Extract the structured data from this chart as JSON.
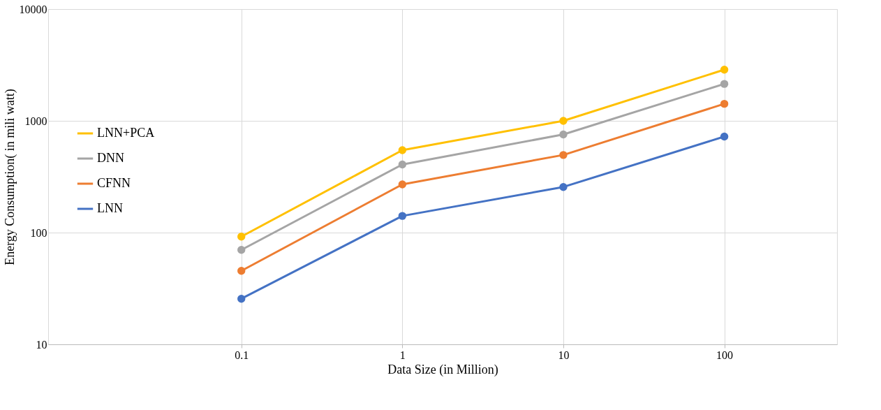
{
  "chart_data": {
    "type": "line",
    "xlabel": "Data Size (in Million)",
    "ylabel": "Energy Consumption( in mili watt)",
    "categories": [
      "0.1",
      "1",
      "10",
      "100"
    ],
    "series": [
      {
        "name": "LNN+PCA",
        "color": "#ffc000",
        "values": [
          92,
          546,
          1000,
          2870
        ]
      },
      {
        "name": "DNN",
        "color": "#a5a5a5",
        "values": [
          70,
          407,
          755,
          2140
        ]
      },
      {
        "name": "CFNN",
        "color": "#ed7d31",
        "values": [
          45.5,
          270,
          495,
          1420
        ]
      },
      {
        "name": "LNN",
        "color": "#4472c4",
        "values": [
          25.6,
          141,
          256,
          723
        ]
      }
    ],
    "log": "y",
    "ylim": [
      10,
      10000
    ],
    "yticks": [
      10,
      100,
      1000,
      10000
    ],
    "grid": true,
    "legend": "left",
    "marker": "circle",
    "line_style": "solid"
  }
}
